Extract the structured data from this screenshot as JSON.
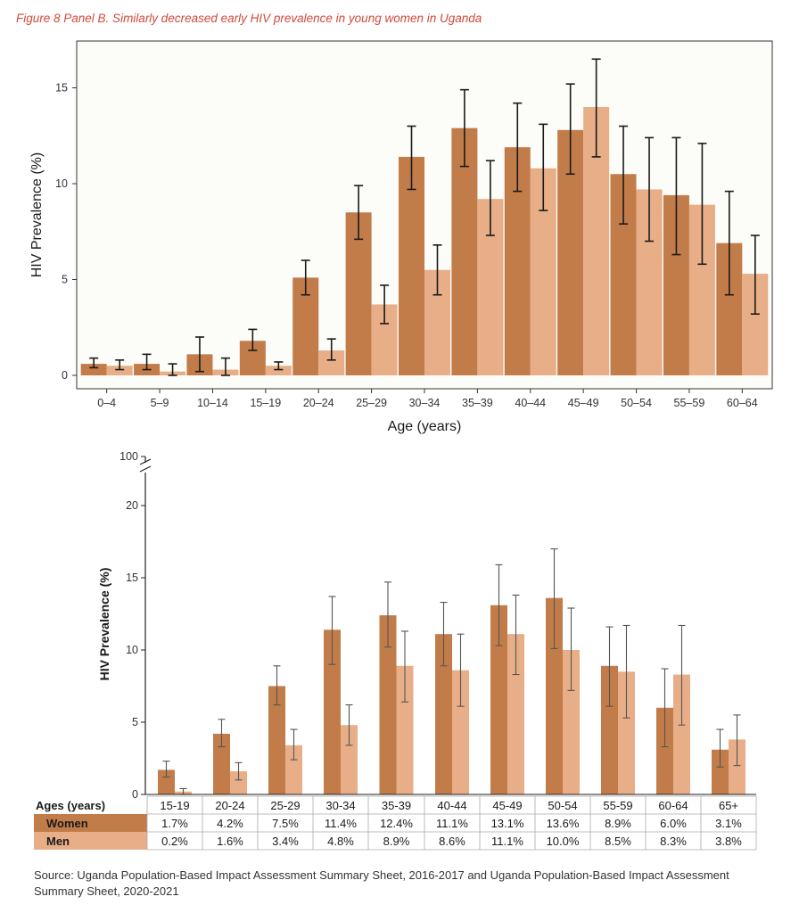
{
  "title": "Figure 8 Panel B. Similarly decreased early HIV prevalence in young women in Uganda",
  "source": "Source: Uganda Population-Based Impact Assessment Summary Sheet, 2016-2017 and Uganda Population-Based Impact Assessment Summary Sheet, 2020-2021",
  "colors": {
    "women": "#c27c4a",
    "men": "#e8ae88",
    "panel_bg": "#fcfcf8",
    "error": "#1a1a1a"
  },
  "chart_data": [
    {
      "type": "bar",
      "xlabel": "Age (years)",
      "ylabel": "HIV Prevalence (%)",
      "ylim": [
        0,
        17
      ],
      "yticks": [
        "0",
        "5",
        "10",
        "15"
      ],
      "categories": [
        "0–4",
        "5–9",
        "10–14",
        "15–19",
        "20–24",
        "25–29",
        "30–34",
        "35–39",
        "40–44",
        "45–49",
        "50–54",
        "55–59",
        "60–64"
      ],
      "series": [
        {
          "values": [
            0.6,
            0.6,
            1.1,
            1.8,
            5.1,
            8.5,
            11.4,
            12.9,
            11.9,
            12.8,
            10.5,
            9.4,
            6.9
          ],
          "err_low": [
            0.4,
            0.3,
            0.2,
            1.3,
            4.2,
            7.1,
            9.7,
            10.9,
            9.6,
            10.5,
            7.9,
            6.3,
            4.2
          ],
          "err_high": [
            0.9,
            1.1,
            2.0,
            2.4,
            6.0,
            9.9,
            13.0,
            14.9,
            14.2,
            15.2,
            13.0,
            12.4,
            9.6
          ]
        },
        {
          "values": [
            0.5,
            0.2,
            0.3,
            0.5,
            1.3,
            3.7,
            5.5,
            9.2,
            10.8,
            14.0,
            9.7,
            8.9,
            5.3
          ],
          "err_low": [
            0.3,
            0.0,
            0.0,
            0.3,
            0.8,
            2.7,
            4.2,
            7.3,
            8.6,
            11.4,
            7.0,
            5.8,
            3.2
          ],
          "err_high": [
            0.8,
            0.6,
            0.9,
            0.7,
            1.9,
            4.7,
            6.8,
            11.2,
            13.1,
            16.5,
            12.4,
            12.1,
            7.3
          ]
        }
      ]
    },
    {
      "type": "bar",
      "ylabel": "HIV Prevalence (%)",
      "ylim": [
        0,
        20
      ],
      "yticks": [
        "0",
        "5",
        "10",
        "15",
        "20"
      ],
      "break_tick": "100",
      "categories": [
        "15-19",
        "20-24",
        "25-29",
        "30-34",
        "35-39",
        "40-44",
        "45-49",
        "50-54",
        "55-59",
        "60-64",
        "65+"
      ],
      "table_header": "Ages (years)",
      "series": [
        {
          "name": "Women",
          "values": [
            1.7,
            4.2,
            7.5,
            11.4,
            12.4,
            11.1,
            13.1,
            13.6,
            8.9,
            6.0,
            3.1
          ],
          "labels": [
            "1.7%",
            "4.2%",
            "7.5%",
            "11.4%",
            "12.4%",
            "11.1%",
            "13.1%",
            "13.6%",
            "8.9%",
            "6.0%",
            "3.1%"
          ],
          "err_low": [
            1.2,
            3.3,
            6.2,
            9.0,
            10.2,
            8.9,
            10.3,
            10.1,
            6.1,
            3.3,
            1.9
          ],
          "err_high": [
            2.3,
            5.2,
            8.9,
            13.7,
            14.7,
            13.3,
            15.9,
            17.0,
            11.6,
            8.7,
            4.5
          ]
        },
        {
          "name": "Men",
          "values": [
            0.2,
            1.6,
            3.4,
            4.8,
            8.9,
            8.6,
            11.1,
            10.0,
            8.5,
            8.3,
            3.8
          ],
          "labels": [
            "0.2%",
            "1.6%",
            "3.4%",
            "4.8%",
            "8.9%",
            "8.6%",
            "11.1%",
            "10.0%",
            "8.5%",
            "8.3%",
            "3.8%"
          ],
          "err_low": [
            0.0,
            1.0,
            2.4,
            3.4,
            6.4,
            6.1,
            8.3,
            7.2,
            5.3,
            4.8,
            2.0
          ],
          "err_high": [
            0.4,
            2.2,
            4.5,
            6.2,
            11.3,
            11.1,
            13.8,
            12.9,
            11.7,
            11.7,
            5.5
          ]
        }
      ]
    }
  ]
}
